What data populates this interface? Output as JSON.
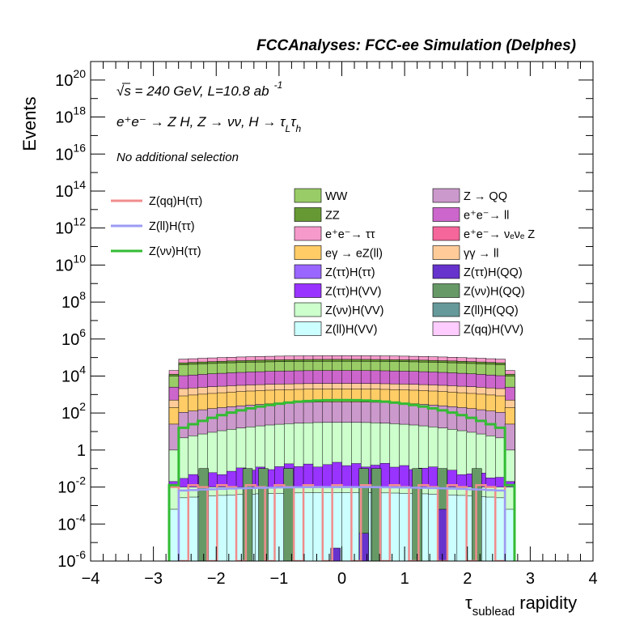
{
  "header": {
    "title": "FCCAnalyses: FCC-ee Simulation (Delphes)"
  },
  "annotations": {
    "energy": "√s = 240 GeV, L=10.8 ab",
    "energy_exp": "-1",
    "process": "e⁺e⁻ → Z H, Z → νν, H → τ",
    "process_sub1": "L",
    "process_tau": "τ",
    "process_sub2": "h",
    "selection": "No additional selection"
  },
  "colors": {
    "frame": "#000000",
    "signal_zqq": "#f08c8c",
    "signal_zll": "#9b9bf5",
    "signal_znn": "#33bb33"
  },
  "chart_data": {
    "type": "bar",
    "subtype": "stacked-histogram-log",
    "title": "",
    "xlabel": "τ",
    "xlabel_sub": "sublead",
    "xlabel_rest": "rapidity",
    "ylabel": "Events",
    "xlim": [
      -4,
      4
    ],
    "ylim": [
      1e-06,
      1e+21
    ],
    "log_y": true,
    "x_ticks": [
      "−4",
      "−3",
      "−2",
      "−1",
      "0",
      "1",
      "2",
      "3",
      "4"
    ],
    "y_ticks": [
      {
        "base": "10",
        "exp": "-6"
      },
      {
        "base": "10",
        "exp": "-4"
      },
      {
        "base": "10",
        "exp": "-2"
      },
      {
        "base": "1",
        "exp": ""
      },
      {
        "base": "10",
        "exp": "2"
      },
      {
        "base": "10",
        "exp": "4"
      },
      {
        "base": "10",
        "exp": "6"
      },
      {
        "base": "10",
        "exp": "8"
      },
      {
        "base": "10",
        "exp": "10"
      },
      {
        "base": "10",
        "exp": "12"
      },
      {
        "base": "10",
        "exp": "14"
      },
      {
        "base": "10",
        "exp": "16"
      },
      {
        "base": "10",
        "exp": "18"
      },
      {
        "base": "10",
        "exp": "20"
      }
    ],
    "legend_signals": [
      {
        "name": "Z(qq)H(ττ)",
        "color": "#f08c8c"
      },
      {
        "name": "Z(ll)H(ττ)",
        "color": "#9b9bf5"
      },
      {
        "name": "Z(νν)H(ττ)",
        "color": "#33bb33"
      }
    ],
    "legend_backgrounds": [
      {
        "name": "WW",
        "color": "#99cc66"
      },
      {
        "name": "Z → QQ",
        "color": "#cc99cc"
      },
      {
        "name": "ZZ",
        "color": "#669933"
      },
      {
        "name": "e⁺e⁻→ ll",
        "color": "#cc66cc"
      },
      {
        "name": "e⁺e⁻→ ττ",
        "color": "#f59acb"
      },
      {
        "name": "e⁺e⁻→ νₑνₑ Z",
        "color": "#f5669a"
      },
      {
        "name": "eγ → eZ(ll)",
        "color": "#ffcc66"
      },
      {
        "name": "γγ → ll",
        "color": "#ffcc99"
      },
      {
        "name": "Z(ττ)H(ττ)",
        "color": "#9966ff"
      },
      {
        "name": "Z(ττ)H(QQ)",
        "color": "#6633cc"
      },
      {
        "name": "Z(ττ)H(VV)",
        "color": "#9933ff"
      },
      {
        "name": "Z(νν)H(QQ)",
        "color": "#669966"
      },
      {
        "name": "Z(νν)H(VV)",
        "color": "#ccffcc"
      },
      {
        "name": "Z(ll)H(QQ)",
        "color": "#669999"
      },
      {
        "name": "Z(ll)H(VV)",
        "color": "#ccffff"
      },
      {
        "name": "Z(qq)H(VV)",
        "color": "#ffccff"
      }
    ],
    "stack_log10_levels": [
      {
        "process": "Z(ll)H(VV)",
        "color": "#ccffff",
        "center": -2.3,
        "edge": -2.6
      },
      {
        "process": "Z(νν)H(VV)",
        "color": "#ccffcc",
        "center": 1.5,
        "edge": 0.6
      },
      {
        "process": "Z → QQ",
        "color": "#cc99cc",
        "center": 2.6,
        "edge": 2.0
      },
      {
        "process": "eγ → eZ(ll)",
        "color": "#ffcc66",
        "center": 3.3,
        "edge": 2.9
      },
      {
        "process": "γγ → ll",
        "color": "#ffcc99",
        "center": 3.6,
        "edge": 3.3
      },
      {
        "process": "e⁺e⁻→ ll",
        "color": "#cc66cc",
        "center": 4.3,
        "edge": 4.0
      },
      {
        "process": "WW",
        "color": "#99cc66",
        "center": 4.8,
        "edge": 4.6
      },
      {
        "process": "ZZ",
        "color": "#669933",
        "center": 4.9,
        "edge": 4.7
      },
      {
        "process": "e⁺e⁻→ ττ",
        "color": "#f59acb",
        "center": 5.1,
        "edge": 4.9
      }
    ],
    "signal_znn_log10": {
      "center": 2.7,
      "edge": 1.1
    },
    "signal_zll_log10": {
      "center": -2.0,
      "edge": -2.2
    },
    "signal_zqq_log10": {
      "level": -2.0
    },
    "x_range_filled": [
      -2.75,
      2.75
    ]
  }
}
